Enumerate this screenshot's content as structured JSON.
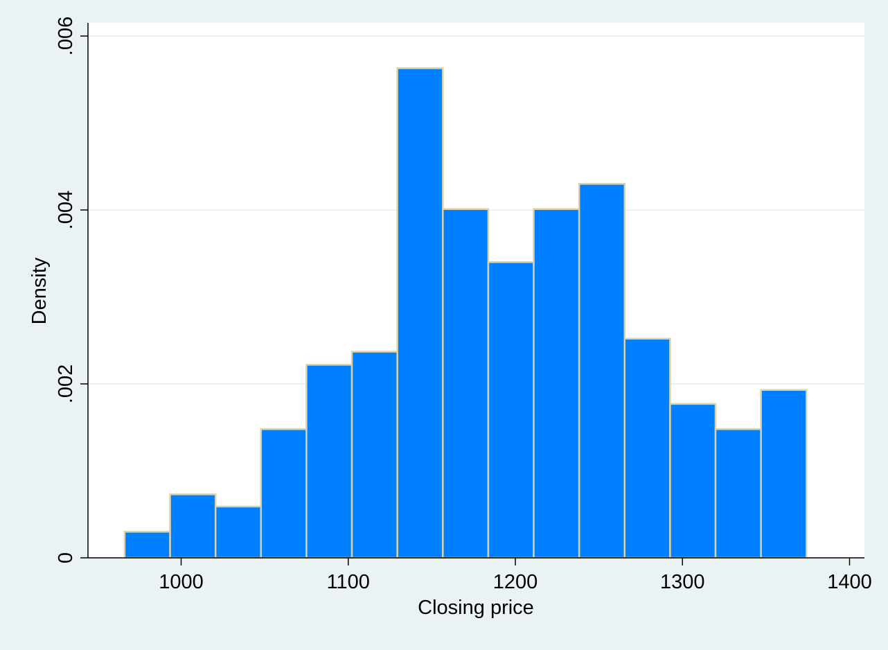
{
  "chart_data": {
    "type": "bar",
    "subtype": "histogram",
    "title": "",
    "xlabel": "Closing price",
    "ylabel": "Density",
    "xlim": [
      945,
      1410
    ],
    "ylim": [
      0,
      0.006
    ],
    "x_ticks": [
      1000,
      1100,
      1200,
      1300,
      1400
    ],
    "x_tick_labels": [
      "1000",
      "1100",
      "1200",
      "1300",
      "1400"
    ],
    "y_ticks": [
      0,
      0.002,
      0.004,
      0.006
    ],
    "y_tick_labels": [
      "0",
      ".002",
      ".004",
      ".006"
    ],
    "grid": true,
    "bin_width": 27.2,
    "bins": [
      {
        "x0": 966.2,
        "x1": 993.4,
        "density": 0.0003
      },
      {
        "x0": 993.4,
        "x1": 1020.6,
        "density": 0.00073
      },
      {
        "x0": 1020.6,
        "x1": 1047.8,
        "density": 0.00059
      },
      {
        "x0": 1047.8,
        "x1": 1075.0,
        "density": 0.00148
      },
      {
        "x0": 1075.0,
        "x1": 1102.2,
        "density": 0.00222
      },
      {
        "x0": 1102.2,
        "x1": 1129.4,
        "density": 0.00237
      },
      {
        "x0": 1129.4,
        "x1": 1156.6,
        "density": 0.00563
      },
      {
        "x0": 1156.6,
        "x1": 1183.8,
        "density": 0.00401
      },
      {
        "x0": 1183.8,
        "x1": 1211.0,
        "density": 0.0034
      },
      {
        "x0": 1211.0,
        "x1": 1238.2,
        "density": 0.00401
      },
      {
        "x0": 1238.2,
        "x1": 1265.4,
        "density": 0.0043
      },
      {
        "x0": 1265.4,
        "x1": 1292.6,
        "density": 0.00252
      },
      {
        "x0": 1292.6,
        "x1": 1319.8,
        "density": 0.00177
      },
      {
        "x0": 1319.8,
        "x1": 1347.0,
        "density": 0.00148
      },
      {
        "x0": 1347.0,
        "x1": 1374.2,
        "density": 0.00193
      }
    ],
    "colors": {
      "background": "#eaf2f3",
      "plot_area": "#ffffff",
      "bar_fill": "#0080ff",
      "bar_edge": "#d8d2a8",
      "grid": "#e8f1f3",
      "axis": "#000000"
    }
  }
}
